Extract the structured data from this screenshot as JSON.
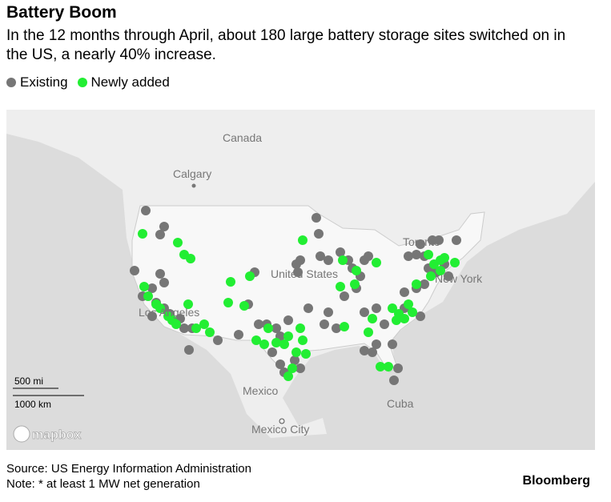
{
  "header": {
    "title": "Battery Boom",
    "subtitle": "In the 12 months through April, about 180 large battery storage sites switched on in the US, a nearly 40% increase."
  },
  "legend": [
    {
      "name": "Existing",
      "color": "#767676"
    },
    {
      "name": "Newly added",
      "color": "#22ee33"
    }
  ],
  "map": {
    "labels": [
      "Canada",
      "Calgary",
      "United States",
      "Toronto",
      "New York",
      "Los Angeles",
      "Mexico",
      "Mexico City",
      "Cuba"
    ],
    "scale": [
      "500 mi",
      "1000 km"
    ],
    "attribution": "mapbox"
  },
  "footer": {
    "source": "Source: US Energy Information Administration",
    "note": "Note: * at least 1 MW net generation",
    "brand": "Bloomberg"
  }
}
